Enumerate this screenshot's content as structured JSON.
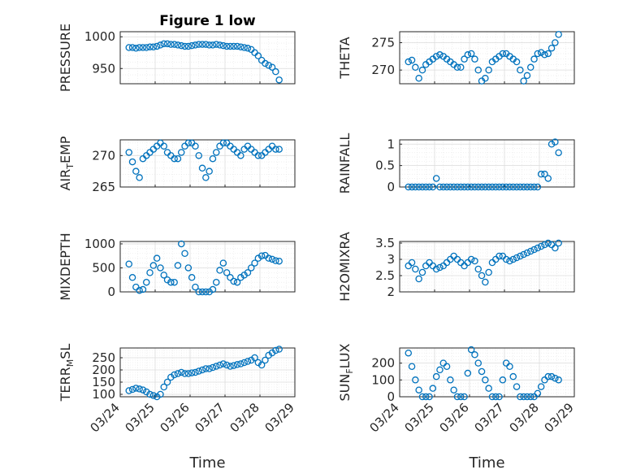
{
  "figure": {
    "title": "Figure 1 low"
  },
  "chart_data": [
    {
      "type": "scatter",
      "ylabel": "PRESSURE",
      "yticks": [
        950,
        1000
      ],
      "ylim": [
        926,
        1008
      ],
      "x": [
        0.25,
        0.35,
        0.45,
        0.55,
        0.65,
        0.75,
        0.85,
        0.95,
        1.05,
        1.15,
        1.25,
        1.35,
        1.45,
        1.55,
        1.65,
        1.75,
        1.85,
        1.95,
        2.05,
        2.15,
        2.25,
        2.35,
        2.45,
        2.55,
        2.65,
        2.75,
        2.85,
        2.95,
        3.05,
        3.15,
        3.25,
        3.35,
        3.45,
        3.55,
        3.65,
        3.75,
        3.85,
        3.95,
        4.05,
        4.15,
        4.25,
        4.35,
        4.45,
        4.55
      ],
      "y": [
        983,
        983,
        982,
        983,
        983,
        983,
        984,
        984,
        985,
        987,
        989,
        989,
        988,
        988,
        987,
        986,
        985,
        985,
        986,
        987,
        988,
        988,
        988,
        987,
        987,
        988,
        987,
        986,
        985,
        985,
        985,
        985,
        984,
        983,
        982,
        980,
        975,
        970,
        963,
        958,
        955,
        952,
        945,
        932
      ]
    },
    {
      "type": "scatter",
      "ylabel": "THETA",
      "yticks": [
        270,
        275
      ],
      "ylim": [
        267.5,
        277
      ],
      "x": [
        0.25,
        0.35,
        0.45,
        0.55,
        0.65,
        0.75,
        0.85,
        0.95,
        1.05,
        1.15,
        1.25,
        1.35,
        1.45,
        1.55,
        1.65,
        1.75,
        1.85,
        1.95,
        2.05,
        2.15,
        2.25,
        2.35,
        2.45,
        2.55,
        2.65,
        2.75,
        2.85,
        2.95,
        3.05,
        3.15,
        3.25,
        3.35,
        3.45,
        3.55,
        3.65,
        3.75,
        3.85,
        3.95,
        4.05,
        4.15,
        4.25,
        4.35,
        4.45,
        4.55
      ],
      "y": [
        271.5,
        271.8,
        270.5,
        268.5,
        270,
        271,
        271.5,
        272,
        272.5,
        272.8,
        272.5,
        272,
        271.5,
        271,
        270.5,
        270.5,
        272,
        272.8,
        273,
        272,
        270,
        268,
        268.5,
        270,
        271.5,
        272,
        272.5,
        273,
        273,
        272.5,
        272,
        271.5,
        270,
        268,
        269,
        270.5,
        272,
        273,
        273.2,
        272.8,
        273,
        274,
        275,
        276.5
      ]
    },
    {
      "type": "scatter",
      "ylabel": "AIR_TEMP",
      "yticks": [
        265,
        270
      ],
      "ylim": [
        265,
        272.5
      ],
      "x": [
        0.25,
        0.35,
        0.45,
        0.55,
        0.65,
        0.75,
        0.85,
        0.95,
        1.05,
        1.15,
        1.25,
        1.35,
        1.45,
        1.55,
        1.65,
        1.75,
        1.85,
        1.95,
        2.05,
        2.15,
        2.25,
        2.35,
        2.45,
        2.55,
        2.65,
        2.75,
        2.85,
        2.95,
        3.05,
        3.15,
        3.25,
        3.35,
        3.45,
        3.55,
        3.65,
        3.75,
        3.85,
        3.95,
        4.05,
        4.15,
        4.25,
        4.35,
        4.45,
        4.55
      ],
      "y": [
        270.5,
        269,
        267.5,
        266.5,
        269.5,
        270,
        270.5,
        271,
        271.5,
        272,
        271.5,
        270.5,
        270,
        269.5,
        269.5,
        270.5,
        271.5,
        272,
        272,
        271.5,
        270,
        268,
        266.5,
        267.5,
        269.5,
        270.5,
        271.5,
        272,
        272,
        271.5,
        271,
        270.5,
        270,
        271,
        271.5,
        271,
        270.5,
        270,
        270,
        270.5,
        271,
        271.5,
        271,
        271
      ]
    },
    {
      "type": "scatter",
      "ylabel": "RAINFALL",
      "yticks": [
        0,
        0.5,
        1
      ],
      "ylim": [
        0,
        1.1
      ],
      "x": [
        0.25,
        0.35,
        0.45,
        0.55,
        0.65,
        0.75,
        0.85,
        0.95,
        1.05,
        1.15,
        1.25,
        1.35,
        1.45,
        1.55,
        1.65,
        1.75,
        1.85,
        1.95,
        2.05,
        2.15,
        2.25,
        2.35,
        2.45,
        2.55,
        2.65,
        2.75,
        2.85,
        2.95,
        3.05,
        3.15,
        3.25,
        3.35,
        3.45,
        3.55,
        3.65,
        3.75,
        3.85,
        3.95,
        4.05,
        4.15,
        4.25,
        4.35,
        4.45,
        4.55
      ],
      "y": [
        0,
        0,
        0,
        0,
        0,
        0,
        0,
        0,
        0.2,
        0,
        0,
        0,
        0,
        0,
        0,
        0,
        0,
        0,
        0,
        0,
        0,
        0,
        0,
        0,
        0,
        0,
        0,
        0,
        0,
        0,
        0,
        0,
        0,
        0,
        0,
        0,
        0,
        0,
        0.3,
        0.3,
        0.2,
        1.0,
        1.05,
        0.8
      ]
    },
    {
      "type": "scatter",
      "ylabel": "MIXDEPTH",
      "yticks": [
        0,
        500,
        1000
      ],
      "ylim": [
        0,
        1050
      ],
      "x": [
        0.25,
        0.35,
        0.45,
        0.55,
        0.65,
        0.75,
        0.85,
        0.95,
        1.05,
        1.15,
        1.25,
        1.35,
        1.45,
        1.55,
        1.65,
        1.75,
        1.85,
        1.95,
        2.05,
        2.15,
        2.25,
        2.35,
        2.45,
        2.55,
        2.65,
        2.75,
        2.85,
        2.95,
        3.05,
        3.15,
        3.25,
        3.35,
        3.45,
        3.55,
        3.65,
        3.75,
        3.85,
        3.95,
        4.05,
        4.15,
        4.25,
        4.35,
        4.45,
        4.55
      ],
      "y": [
        580,
        300,
        100,
        30,
        50,
        200,
        400,
        550,
        700,
        500,
        350,
        250,
        200,
        200,
        550,
        1000,
        800,
        500,
        300,
        100,
        0,
        0,
        0,
        0,
        50,
        200,
        450,
        600,
        400,
        300,
        220,
        200,
        300,
        350,
        400,
        500,
        600,
        700,
        750,
        760,
        700,
        680,
        650,
        640
      ]
    },
    {
      "type": "scatter",
      "ylabel": "H2OMIXRA",
      "yticks": [
        2,
        2.5,
        3,
        3.5
      ],
      "ylim": [
        2,
        3.55
      ],
      "x": [
        0.25,
        0.35,
        0.45,
        0.55,
        0.65,
        0.75,
        0.85,
        0.95,
        1.05,
        1.15,
        1.25,
        1.35,
        1.45,
        1.55,
        1.65,
        1.75,
        1.85,
        1.95,
        2.05,
        2.15,
        2.25,
        2.35,
        2.45,
        2.55,
        2.65,
        2.75,
        2.85,
        2.95,
        3.05,
        3.15,
        3.25,
        3.35,
        3.45,
        3.55,
        3.65,
        3.75,
        3.85,
        3.95,
        4.05,
        4.15,
        4.25,
        4.35,
        4.45,
        4.55
      ],
      "y": [
        2.8,
        2.9,
        2.7,
        2.4,
        2.6,
        2.8,
        2.9,
        2.8,
        2.7,
        2.75,
        2.8,
        2.9,
        3.0,
        3.1,
        3.0,
        2.9,
        2.8,
        2.9,
        3.0,
        2.95,
        2.7,
        2.5,
        2.3,
        2.6,
        2.9,
        3.0,
        3.1,
        3.1,
        3.0,
        2.95,
        3.0,
        3.05,
        3.1,
        3.15,
        3.2,
        3.25,
        3.3,
        3.35,
        3.4,
        3.45,
        3.5,
        3.45,
        3.35,
        3.5
      ]
    },
    {
      "type": "scatter",
      "ylabel": "TERR_MSL",
      "yticks": [
        100,
        150,
        200,
        250
      ],
      "ylim": [
        90,
        290
      ],
      "x": [
        0.25,
        0.35,
        0.45,
        0.55,
        0.65,
        0.75,
        0.85,
        0.95,
        1.05,
        1.15,
        1.25,
        1.35,
        1.45,
        1.55,
        1.65,
        1.75,
        1.85,
        1.95,
        2.05,
        2.15,
        2.25,
        2.35,
        2.45,
        2.55,
        2.65,
        2.75,
        2.85,
        2.95,
        3.05,
        3.15,
        3.25,
        3.35,
        3.45,
        3.55,
        3.65,
        3.75,
        3.85,
        3.95,
        4.05,
        4.15,
        4.25,
        4.35,
        4.45,
        4.55
      ],
      "y": [
        115,
        120,
        125,
        122,
        118,
        110,
        100,
        95,
        90,
        100,
        130,
        150,
        170,
        180,
        185,
        190,
        185,
        185,
        188,
        190,
        195,
        200,
        205,
        205,
        210,
        215,
        220,
        225,
        220,
        215,
        218,
        222,
        225,
        230,
        235,
        240,
        250,
        230,
        220,
        240,
        260,
        270,
        280,
        285
      ]
    },
    {
      "type": "scatter",
      "ylabel": "SUN_FLUX",
      "yticks": [
        0,
        100,
        200
      ],
      "ylim": [
        0,
        290
      ],
      "x": [
        0.25,
        0.35,
        0.45,
        0.55,
        0.65,
        0.75,
        0.85,
        0.95,
        1.05,
        1.15,
        1.25,
        1.35,
        1.45,
        1.55,
        1.65,
        1.75,
        1.85,
        1.95,
        2.05,
        2.15,
        2.25,
        2.35,
        2.45,
        2.55,
        2.65,
        2.75,
        2.85,
        2.95,
        3.05,
        3.15,
        3.25,
        3.35,
        3.45,
        3.55,
        3.65,
        3.75,
        3.85,
        3.95,
        4.05,
        4.15,
        4.25,
        4.35,
        4.45,
        4.55
      ],
      "y": [
        260,
        180,
        100,
        40,
        0,
        0,
        0,
        50,
        120,
        160,
        200,
        180,
        100,
        40,
        0,
        0,
        0,
        140,
        280,
        250,
        200,
        150,
        100,
        50,
        0,
        0,
        0,
        100,
        200,
        180,
        120,
        60,
        0,
        0,
        0,
        0,
        0,
        20,
        60,
        100,
        120,
        120,
        110,
        100
      ]
    }
  ],
  "xaxis": {
    "ticklabels": [
      "03/24",
      "03/25",
      "03/26",
      "03/27",
      "03/28",
      "03/29"
    ],
    "xlim": [
      0,
      5
    ],
    "label": "Time"
  },
  "colors": {
    "marker": "#0072bd",
    "grid": "#dcdcdc",
    "axes": "#262626"
  }
}
